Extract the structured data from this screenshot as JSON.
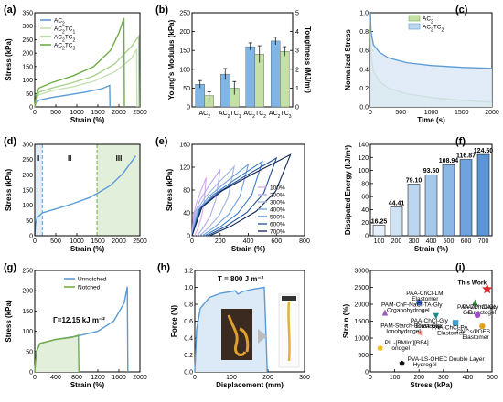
{
  "panels": {
    "a": "(a)",
    "b": "(b)",
    "c": "(c)",
    "d": "(d)",
    "e": "(e)",
    "f": "(f)",
    "g": "(g)",
    "h": "(h)",
    "i": "(i)"
  },
  "chart_data": [
    {
      "id": "a",
      "type": "line",
      "xlabel": "Strain (%)",
      "ylabel": "Stress (kPa)",
      "xlim": [
        0,
        2500
      ],
      "ylim": [
        0,
        350
      ],
      "xticks": [
        0,
        500,
        1000,
        1500,
        2000,
        2500
      ],
      "yticks": [
        0,
        50,
        100,
        150,
        200,
        250,
        300,
        350
      ],
      "legend": [
        "AC2",
        "AC2TC1",
        "AC2TC2",
        "AC2TC3"
      ],
      "series": [
        {
          "name": "AC2",
          "color": "#5b9bd5",
          "x": [
            0,
            30,
            100,
            400,
            800,
            1200,
            1600,
            1780,
            1790
          ],
          "y": [
            0,
            15,
            25,
            35,
            45,
            55,
            68,
            80,
            0
          ]
        },
        {
          "name": "AC2TC1",
          "color": "#c5e0b4",
          "x": [
            0,
            30,
            100,
            400,
            900,
            1400,
            1900,
            2300,
            2420,
            2430
          ],
          "y": [
            0,
            25,
            45,
            60,
            75,
            95,
            130,
            180,
            215,
            0
          ]
        },
        {
          "name": "AC2TC2",
          "color": "#a9d18e",
          "x": [
            0,
            30,
            100,
            400,
            900,
            1400,
            1900,
            2300,
            2470,
            2480
          ],
          "y": [
            0,
            30,
            55,
            70,
            90,
            115,
            160,
            225,
            262,
            0
          ]
        },
        {
          "name": "AC2TC3",
          "color": "#70ad47",
          "x": [
            0,
            30,
            100,
            400,
            900,
            1400,
            1800,
            2000,
            2120,
            2130
          ],
          "y": [
            0,
            40,
            70,
            90,
            115,
            150,
            210,
            275,
            330,
            0
          ]
        }
      ]
    },
    {
      "id": "b",
      "type": "bar",
      "xlabel": "",
      "ylabel": "Young's Modulus (kPa)",
      "ylabel2": "Toughness (MJ/m³)",
      "ylim": [
        0,
        250
      ],
      "ylim2": [
        0,
        5
      ],
      "yticks": [
        0,
        50,
        100,
        150,
        200,
        250
      ],
      "yticks2": [
        0,
        1,
        2,
        3,
        4,
        5
      ],
      "categories": [
        "AC2",
        "AC2TC1",
        "AC2TC2",
        "AC2TC3"
      ],
      "series": [
        {
          "name": "Young's Modulus",
          "color": "#7fb6e6",
          "values": [
            60,
            87,
            160,
            175
          ],
          "errors": [
            10,
            15,
            10,
            10
          ]
        },
        {
          "name": "Toughness",
          "color": "#c5e0a5",
          "values": [
            0.6,
            1.0,
            2.8,
            2.95
          ],
          "errors": [
            0.2,
            0.35,
            0.45,
            0.25
          ]
        }
      ]
    },
    {
      "id": "c",
      "type": "area",
      "xlabel": "Time (s)",
      "ylabel": "Nomalized Stress",
      "xlim": [
        0,
        2000
      ],
      "ylim": [
        0,
        1.0
      ],
      "xticks": [
        0,
        500,
        1000,
        1500,
        2000
      ],
      "yticks": [
        0,
        0.2,
        0.4,
        0.6,
        0.8,
        1.0
      ],
      "legend": [
        "AC2",
        "AC2TC2"
      ],
      "series": [
        {
          "name": "AC2",
          "color": "#70ad47",
          "x": [
            0,
            10,
            50,
            150,
            300,
            600,
            1000,
            1500,
            2000
          ],
          "y": [
            1.0,
            0.55,
            0.38,
            0.27,
            0.2,
            0.14,
            0.1,
            0.07,
            0.05
          ]
        },
        {
          "name": "AC2TC2",
          "color": "#5b9bd5",
          "x": [
            0,
            10,
            50,
            150,
            300,
            600,
            1000,
            1500,
            2000
          ],
          "y": [
            1.0,
            0.8,
            0.66,
            0.58,
            0.52,
            0.47,
            0.44,
            0.42,
            0.41
          ]
        }
      ]
    },
    {
      "id": "d",
      "type": "line",
      "xlabel": "Strain (%)",
      "ylabel": "Stress (kPa)",
      "xlim": [
        0,
        2500
      ],
      "ylim": [
        0,
        300
      ],
      "xticks": [
        0,
        500,
        1000,
        1500,
        2000,
        2500
      ],
      "yticks": [
        0,
        50,
        100,
        150,
        200,
        250,
        300
      ],
      "regions": [
        "I",
        "II",
        "III"
      ],
      "boundaries": [
        180,
        1480
      ],
      "series": [
        {
          "name": "",
          "color": "#5b9bd5",
          "x": [
            0,
            20,
            60,
            180,
            500,
            900,
            1300,
            1500,
            1800,
            2100,
            2400
          ],
          "y": [
            0,
            40,
            60,
            75,
            88,
            105,
            125,
            140,
            165,
            205,
            262
          ]
        }
      ]
    },
    {
      "id": "e",
      "type": "line",
      "xlabel": "Strain (%)",
      "ylabel": "Stress (kPa)",
      "xlim": [
        0,
        800
      ],
      "ylim": [
        0,
        160
      ],
      "xticks": [
        0,
        200,
        400,
        600,
        800
      ],
      "yticks": [
        0,
        40,
        80,
        120,
        160
      ],
      "legend": [
        "100%",
        "200%",
        "300%",
        "400%",
        "500%",
        "600%",
        "700%"
      ],
      "peaks": [
        [
          100,
          102
        ],
        [
          200,
          116
        ],
        [
          300,
          121
        ],
        [
          400,
          125
        ],
        [
          500,
          130
        ],
        [
          600,
          136
        ],
        [
          700,
          142
        ]
      ],
      "colors": [
        "#d4a8ee",
        "#b4a8ec",
        "#9fb6ea",
        "#6f9fdc",
        "#3c7ccc",
        "#234f96",
        "#0f2456"
      ]
    },
    {
      "id": "f",
      "type": "bar",
      "xlabel": "Strain (%)",
      "ylabel": "Dissipated Energy (kJ/m³)",
      "ylim": [
        0,
        140
      ],
      "yticks": [
        0,
        20,
        40,
        60,
        80,
        100,
        120,
        140
      ],
      "categories": [
        "100",
        "200",
        "300",
        "400",
        "500",
        "600",
        "700"
      ],
      "values": [
        16.25,
        44.41,
        79.1,
        93.5,
        108.94,
        116.87,
        124.5
      ],
      "labels": [
        "16.25",
        "44.41",
        "79.10",
        "93.50",
        "108.94",
        "116.87",
        "124.50"
      ],
      "colors": [
        "#e6f0fa",
        "#d0e3f5",
        "#bcd6f0",
        "#a5c8eb",
        "#8cb8e5",
        "#6fa3de",
        "#5b95d8"
      ]
    },
    {
      "id": "g",
      "type": "line",
      "xlabel": "Strain (%)",
      "ylabel": "Stress (kPa)",
      "xlim": [
        0,
        2000
      ],
      "ylim": [
        0,
        250
      ],
      "xticks": [
        0,
        400,
        800,
        1200,
        1600,
        2000
      ],
      "yticks": [
        0,
        50,
        100,
        150,
        200,
        250
      ],
      "legend": [
        "Unnotched",
        "Notched"
      ],
      "annotation": "Γ=12.15 kJ m⁻²",
      "series": [
        {
          "name": "Unnotched",
          "color": "#5b9bd5",
          "x": [
            0,
            30,
            100,
            400,
            800,
            1200,
            1500,
            1700,
            1760,
            1770
          ],
          "y": [
            0,
            50,
            70,
            80,
            88,
            100,
            125,
            170,
            210,
            0
          ]
        },
        {
          "name": "Notched",
          "color": "#70ad47",
          "x": [
            0,
            30,
            100,
            400,
            700,
            830,
            840
          ],
          "y": [
            0,
            50,
            70,
            80,
            85,
            90,
            0
          ]
        }
      ]
    },
    {
      "id": "h",
      "type": "line",
      "xlabel": "Displacement (mm)",
      "ylabel": "Force (N)",
      "xlim": [
        0,
        300
      ],
      "ylim": [
        0,
        1.2
      ],
      "xticks": [
        0,
        100,
        200,
        300
      ],
      "yticks": [
        0.0,
        0.2,
        0.4,
        0.6,
        0.8,
        1.0,
        1.2
      ],
      "annotation": "T = 800 J m⁻²",
      "series": [
        {
          "name": "",
          "color": "#5b9bd5",
          "x": [
            0,
            5,
            15,
            40,
            70,
            100,
            110,
            118,
            130,
            160,
            190,
            195,
            198
          ],
          "y": [
            0,
            0.5,
            0.75,
            0.88,
            0.93,
            0.95,
            0.96,
            0.92,
            0.95,
            0.98,
            1.0,
            0.4,
            0
          ]
        }
      ]
    },
    {
      "id": "i",
      "type": "scatter",
      "xlabel": "Stress (kPa)",
      "ylabel": "Strain (%)",
      "xlim": [
        0,
        500
      ],
      "ylim": [
        0,
        3000
      ],
      "xticks": [
        0,
        100,
        200,
        300,
        400,
        500
      ],
      "yticks": [
        0,
        500,
        1000,
        1500,
        2000,
        2500,
        3000
      ],
      "points": [
        {
          "label": "This Work",
          "x": 480,
          "y": 2450,
          "color": "#e0262c",
          "shape": "star"
        },
        {
          "label": "PAA-ChCl-LM Elastomer",
          "x": 200,
          "y": 2050,
          "color": "#3860d0",
          "shape": "circle"
        },
        {
          "label": "PVI-ChCl-Gly Eutectogel",
          "x": 430,
          "y": 2050,
          "color": "#2b8a3e",
          "shape": "triangle"
        },
        {
          "label": "PAM-ChF-NaCl-TA-Gly Organohydrogel",
          "x": 60,
          "y": 1750,
          "color": "#9b59b6",
          "shape": "triangle"
        },
        {
          "label": "PAA-ChCl-Gly Elastomer",
          "x": 270,
          "y": 1650,
          "color": "#1a8a8a",
          "shape": "triangle-down"
        },
        {
          "label": "PAA-Zr⁴⁺/Glyc Gel",
          "x": 440,
          "y": 1680,
          "color": "#a04ad0",
          "shape": "circle"
        },
        {
          "label": "PAA-ChCl-PA Elastomer",
          "x": 350,
          "y": 1450,
          "color": "#3ba0d8",
          "shape": "square"
        },
        {
          "label": "CNCs/PDES Elastomer",
          "x": 460,
          "y": 1350,
          "color": "#e0a020",
          "shape": "circle"
        },
        {
          "label": "PAM-Starch-Borax-Gly Ionohydrogel",
          "x": 200,
          "y": 1150,
          "color": "#ff9a8a",
          "shape": "triangle-left"
        },
        {
          "label": "PIL-[BMIm][BF4] Ionogel",
          "x": 40,
          "y": 700,
          "color": "#f0c020",
          "shape": "hexagon"
        },
        {
          "label": "PVA-LS-QHEC Double Layer Hydrogel",
          "x": 130,
          "y": 250,
          "color": "#111111",
          "shape": "pentagon"
        }
      ]
    }
  ]
}
